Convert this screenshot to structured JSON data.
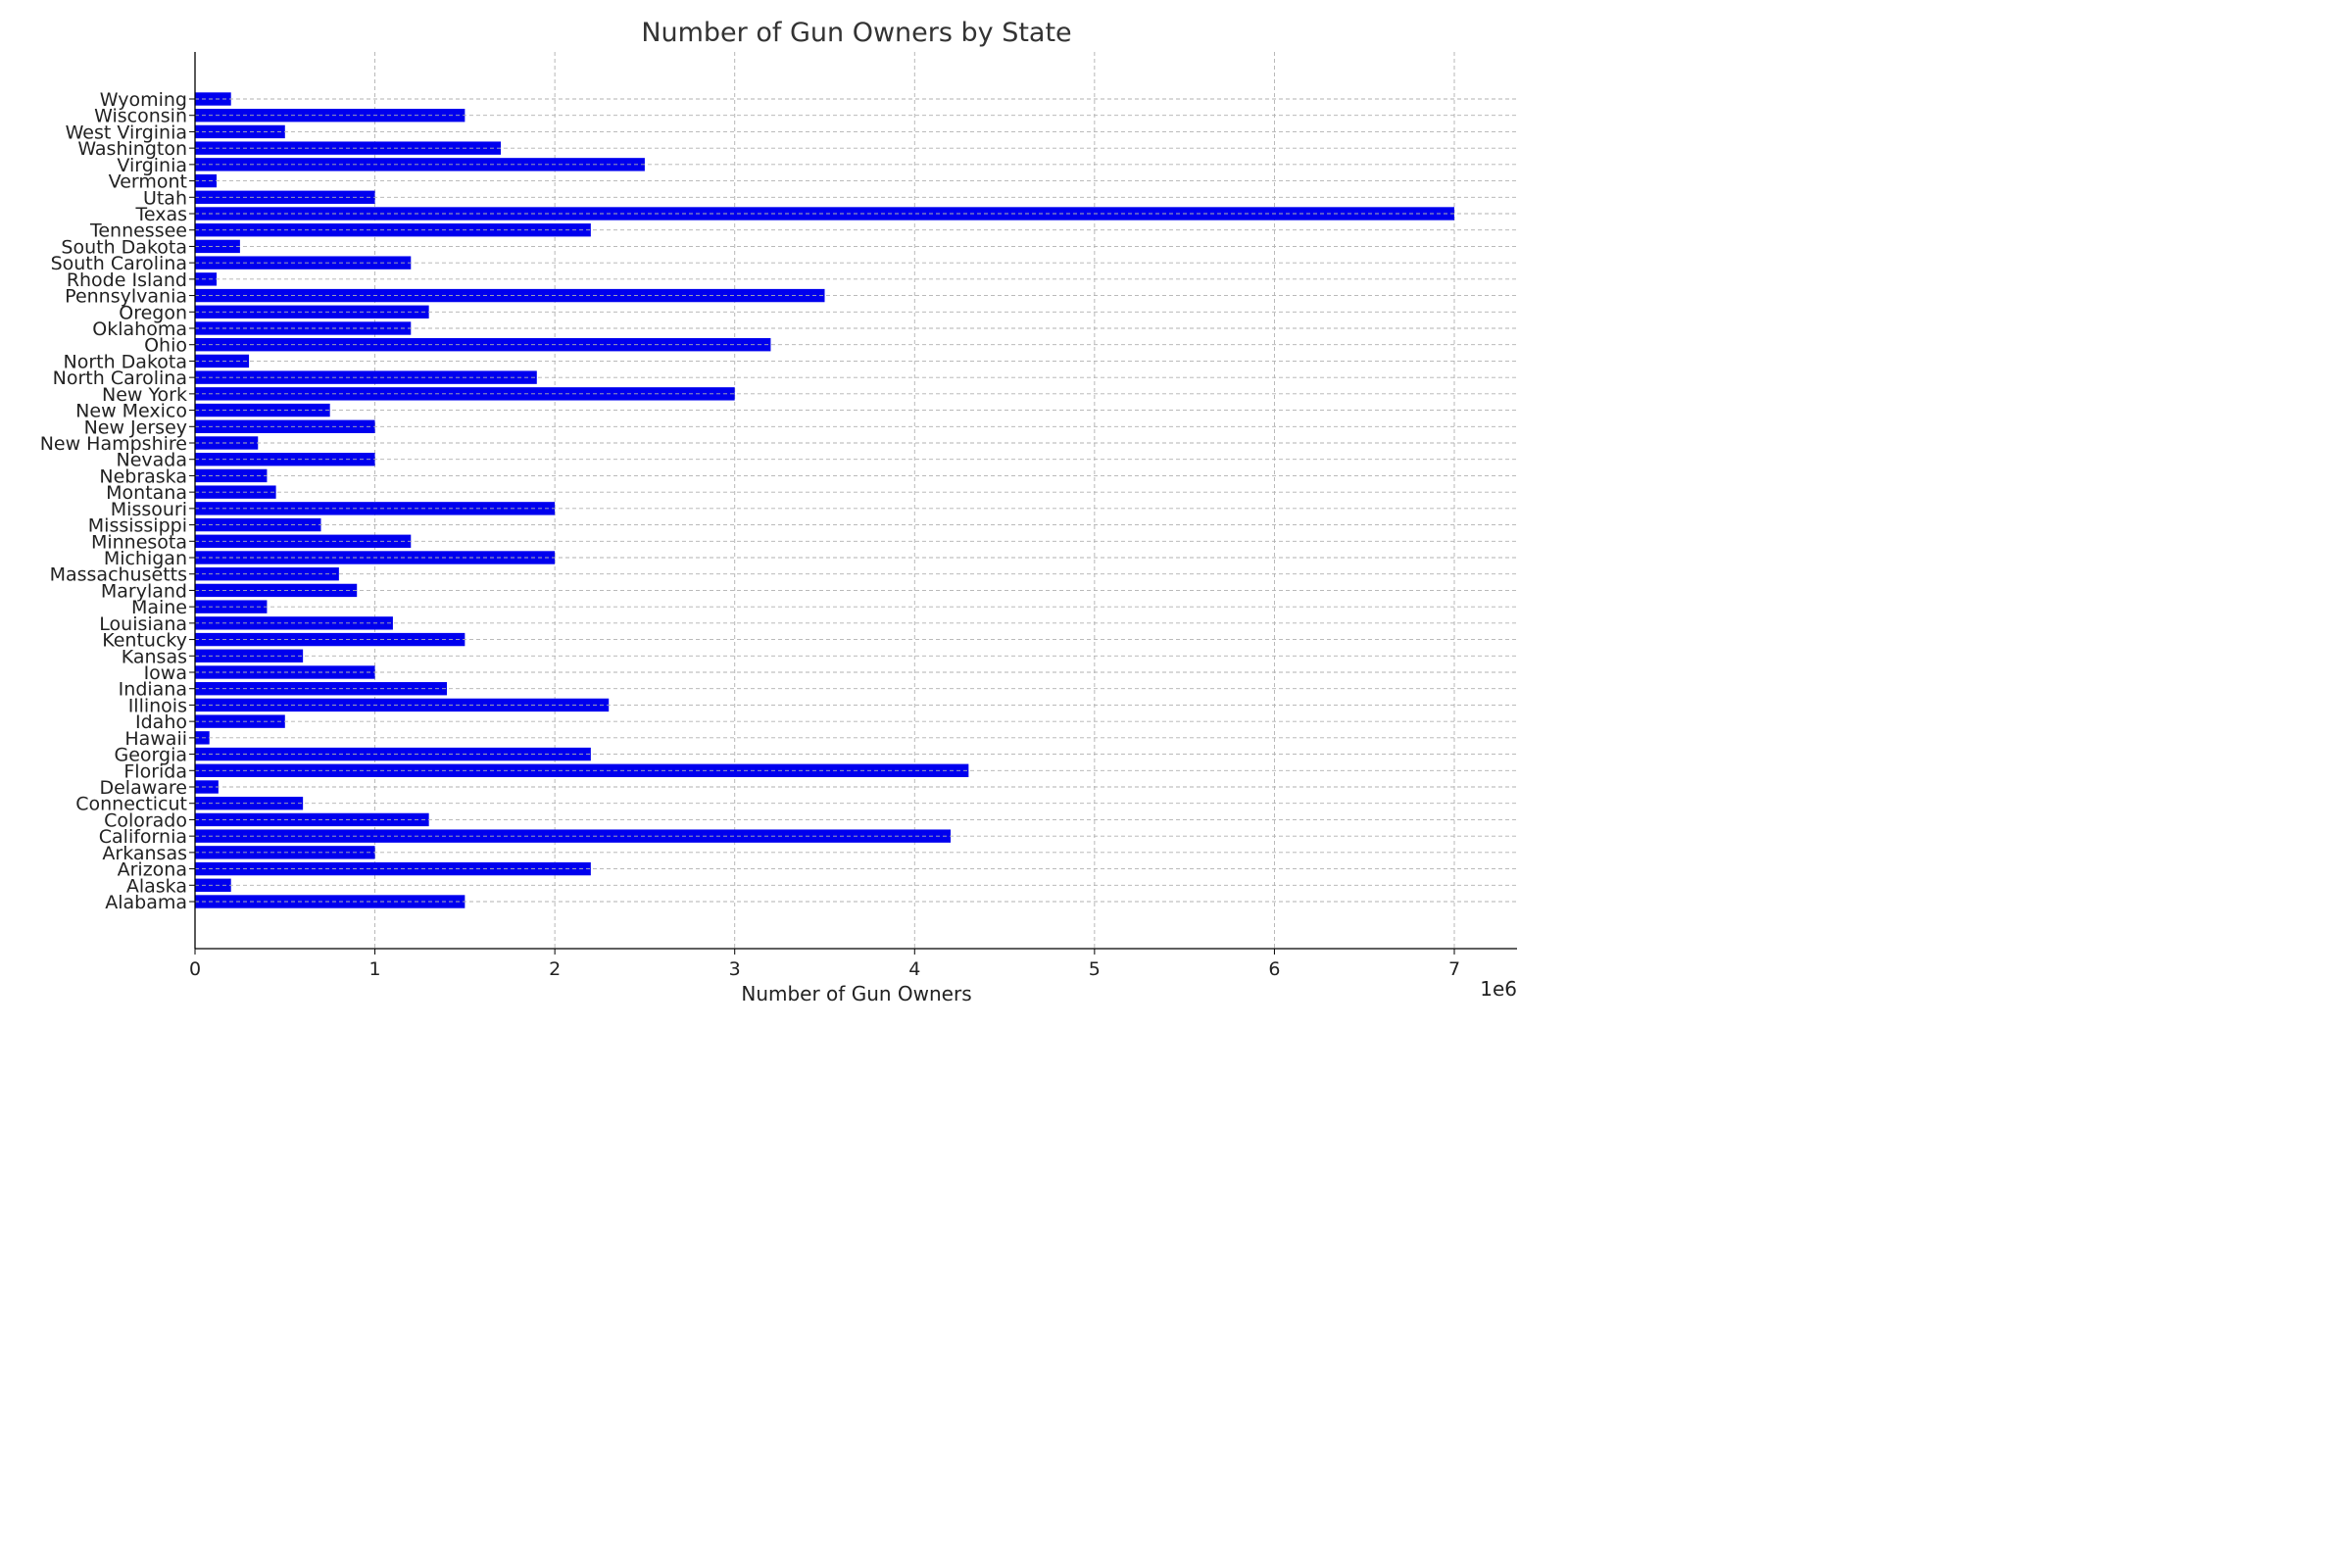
{
  "chart_data": {
    "type": "bar",
    "orientation": "horizontal",
    "title": "Number of Gun Owners by State",
    "xlabel": "Number of Gun Owners",
    "ylabel": "",
    "x_offset_label": "1e6",
    "xlim": [
      0,
      7350000
    ],
    "xticks": [
      0,
      1000000,
      2000000,
      3000000,
      4000000,
      5000000,
      6000000,
      7000000
    ],
    "xtick_labels": [
      "0",
      "1",
      "2",
      "3",
      "4",
      "5",
      "6",
      "7"
    ],
    "grid": true,
    "bar_color": "#0000ee",
    "categories": [
      "Alabama",
      "Alaska",
      "Arizona",
      "Arkansas",
      "California",
      "Colorado",
      "Connecticut",
      "Delaware",
      "Florida",
      "Georgia",
      "Hawaii",
      "Idaho",
      "Illinois",
      "Indiana",
      "Iowa",
      "Kansas",
      "Kentucky",
      "Louisiana",
      "Maine",
      "Maryland",
      "Massachusetts",
      "Michigan",
      "Minnesota",
      "Mississippi",
      "Missouri",
      "Montana",
      "Nebraska",
      "Nevada",
      "New Hampshire",
      "New Jersey",
      "New Mexico",
      "New York",
      "North Carolina",
      "North Dakota",
      "Ohio",
      "Oklahoma",
      "Oregon",
      "Pennsylvania",
      "Rhode Island",
      "South Carolina",
      "South Dakota",
      "Tennessee",
      "Texas",
      "Utah",
      "Vermont",
      "Virginia",
      "Washington",
      "West Virginia",
      "Wisconsin",
      "Wyoming"
    ],
    "values": [
      1500000,
      200000,
      2200000,
      1000000,
      4200000,
      1300000,
      600000,
      130000,
      4300000,
      2200000,
      80000,
      500000,
      2300000,
      1400000,
      1000000,
      600000,
      1500000,
      1100000,
      400000,
      900000,
      800000,
      2000000,
      1200000,
      700000,
      2000000,
      450000,
      400000,
      1000000,
      350000,
      1000000,
      750000,
      3000000,
      1900000,
      300000,
      3200000,
      1200000,
      1300000,
      3500000,
      120000,
      1200000,
      250000,
      2200000,
      7000000,
      1000000,
      120000,
      2500000,
      1700000,
      500000,
      1500000,
      200000
    ]
  }
}
